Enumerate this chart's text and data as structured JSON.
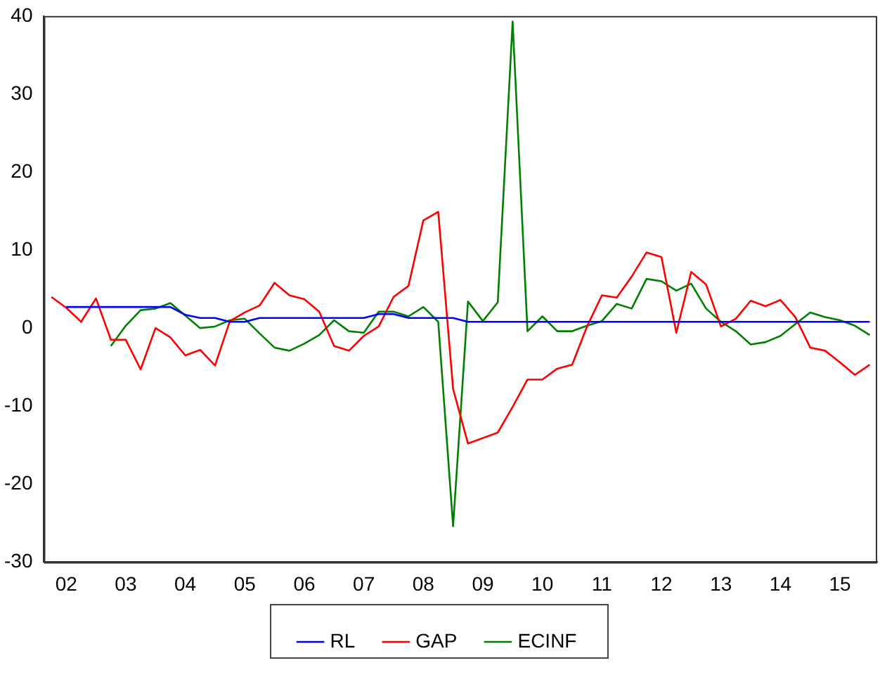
{
  "chart_data": {
    "type": "line",
    "categories": [
      null,
      "02",
      null,
      null,
      null,
      "03",
      null,
      null,
      null,
      "04",
      null,
      null,
      null,
      "05",
      null,
      null,
      null,
      "06",
      null,
      null,
      null,
      "07",
      null,
      null,
      null,
      "08",
      null,
      null,
      null,
      "09",
      null,
      null,
      null,
      "10",
      null,
      null,
      null,
      "11",
      null,
      null,
      null,
      "12",
      null,
      null,
      null,
      "13",
      null,
      null,
      null,
      "14",
      null,
      null,
      null,
      "15",
      null,
      null
    ],
    "series": [
      {
        "name": "RL",
        "color": "#0000ff",
        "values": [
          null,
          2.7,
          2.7,
          2.7,
          2.7,
          2.7,
          2.7,
          2.7,
          2.7,
          1.7,
          1.3,
          1.3,
          0.8,
          0.8,
          1.3,
          1.3,
          1.3,
          1.3,
          1.3,
          1.3,
          1.3,
          1.3,
          1.8,
          1.8,
          1.3,
          1.3,
          1.3,
          1.3,
          0.8,
          0.8,
          0.8,
          0.8,
          0.8,
          0.8,
          0.8,
          0.8,
          0.8,
          0.8,
          0.8,
          0.8,
          0.8,
          0.8,
          0.8,
          0.8,
          0.8,
          0.8,
          0.8,
          0.8,
          0.8,
          0.8,
          0.8,
          0.8,
          0.8,
          0.8,
          0.8,
          0.8
        ]
      },
      {
        "name": "GAP",
        "color": "#ff0000",
        "values": [
          4.0,
          2.6,
          0.8,
          3.8,
          -1.5,
          -1.5,
          -5.3,
          0,
          -1.2,
          -3.5,
          -2.8,
          -4.8,
          0.9,
          2.0,
          2.9,
          5.8,
          4.2,
          3.7,
          2.1,
          -2.3,
          -2.9,
          -1.0,
          0.2,
          4.0,
          5.4,
          13.8,
          14.9,
          -7.8,
          -14.8,
          -14.1,
          -13.4,
          -10.1,
          -6.6,
          -6.6,
          -5.2,
          -4.7,
          0.2,
          4.2,
          3.9,
          6.6,
          9.7,
          9.1,
          -0.6,
          7.2,
          5.6,
          0.2,
          1.2,
          3.5,
          2.8,
          3.6,
          1.4,
          -2.5,
          -2.9,
          -4.4,
          -6.0,
          -4.7
        ]
      },
      {
        "name": "ECINF",
        "color": "#008000",
        "values": [
          null,
          null,
          null,
          null,
          -2.3,
          0.3,
          2.3,
          2.5,
          3.2,
          1.6,
          0,
          0.2,
          1.0,
          1.2,
          -0.7,
          -2.5,
          -2.9,
          -2.0,
          -0.9,
          1.0,
          -0.4,
          -0.6,
          2.1,
          2.1,
          1.5,
          2.7,
          0.8,
          -25.4,
          3.4,
          0.9,
          3.3,
          39.3,
          -0.4,
          1.5,
          -0.4,
          -0.4,
          0.3,
          0.9,
          3.1,
          2.5,
          6.3,
          6.0,
          4.8,
          5.7,
          2.5,
          0.8,
          -0.4,
          -2.1,
          -1.8,
          -1.0,
          0.5,
          2.0,
          1.4,
          1.0,
          0.3,
          -0.9
        ]
      }
    ],
    "ylim": [
      -30,
      40
    ],
    "yticks": [
      -30,
      -20,
      -10,
      0,
      10,
      20,
      30,
      40
    ],
    "grid": false,
    "legend": "bottom",
    "marker": "none",
    "line_style": "solid"
  }
}
